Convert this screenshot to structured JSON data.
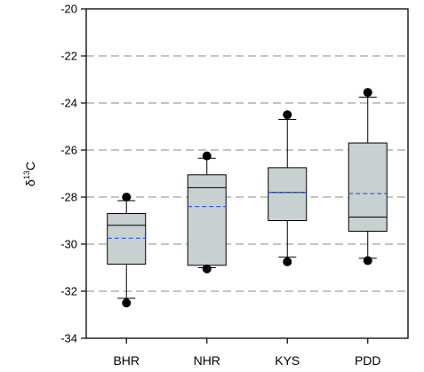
{
  "chart_data": {
    "type": "box",
    "title": "",
    "xlabel": "",
    "ylabel": {
      "prefix": "δ",
      "sup": "13",
      "suffix": "C"
    },
    "ylim": [
      -34,
      -20
    ],
    "yticks": [
      -34,
      -32,
      -30,
      -28,
      -26,
      -24,
      -22,
      -20
    ],
    "ytick_labels": [
      "-34",
      "-32",
      "-30",
      "-28",
      "-26",
      "-24",
      "-22",
      "-20"
    ],
    "gridlines": [
      -22,
      -24,
      -26,
      -28,
      -30,
      -32
    ],
    "grid": "dashed horizontal",
    "colors": {
      "box_fill": "#c8d1d1",
      "mean_line": "#3a5fd6",
      "grid": "#a0a0a0",
      "outlier": "#000000"
    },
    "categories": [
      "BHR",
      "NHR",
      "KYS",
      "PDD"
    ],
    "boxes": [
      {
        "name": "BHR",
        "whisker_low": -32.3,
        "q1": -30.85,
        "median": -29.2,
        "mean": -29.75,
        "q3": -28.7,
        "whisker_high": -28.15,
        "outliers": [
          -32.5,
          -28.0
        ]
      },
      {
        "name": "NHR",
        "whisker_low": -31.0,
        "q1": -30.9,
        "median": -27.6,
        "mean": -28.4,
        "q3": -27.05,
        "whisker_high": -26.35,
        "outliers": [
          -31.05,
          -26.25
        ]
      },
      {
        "name": "KYS",
        "whisker_low": -30.55,
        "q1": -29.0,
        "median": -27.8,
        "mean": -27.8,
        "q3": -26.75,
        "whisker_high": -24.7,
        "outliers": [
          -30.75,
          -24.5
        ]
      },
      {
        "name": "PDD",
        "whisker_low": -30.6,
        "q1": -29.45,
        "median": -28.85,
        "mean": -27.85,
        "q3": -25.7,
        "whisker_high": -23.75,
        "outliers": [
          -30.7,
          -23.55
        ]
      }
    ]
  }
}
